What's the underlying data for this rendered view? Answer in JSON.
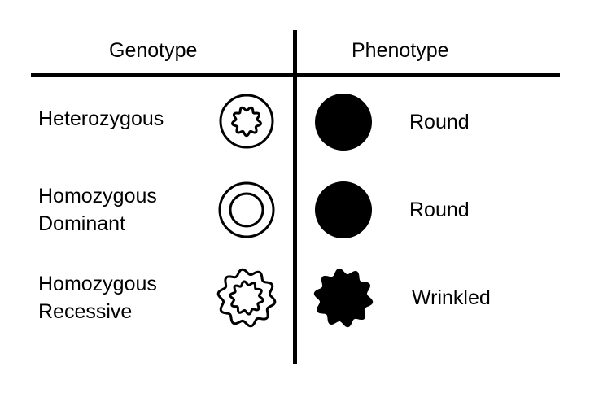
{
  "headers": {
    "genotype": "Genotype",
    "phenotype": "Phenotype"
  },
  "rows": [
    {
      "genotype_lines": [
        "Heterozygous"
      ],
      "genotype_icon": "circle-with-wavy-inner-icon",
      "phenotype": "Round",
      "phenotype_icon": "round-seed-icon"
    },
    {
      "genotype_lines": [
        "Homozygous",
        "Dominant"
      ],
      "genotype_icon": "double-circle-icon",
      "phenotype": "Round",
      "phenotype_icon": "round-seed-icon"
    },
    {
      "genotype_lines": [
        "Homozygous",
        "Recessive"
      ],
      "genotype_icon": "double-wavy-icon",
      "phenotype": "Wrinkled",
      "phenotype_icon": "wrinkled-seed-icon"
    }
  ],
  "colors": {
    "ink": "#000000",
    "background": "#ffffff"
  }
}
